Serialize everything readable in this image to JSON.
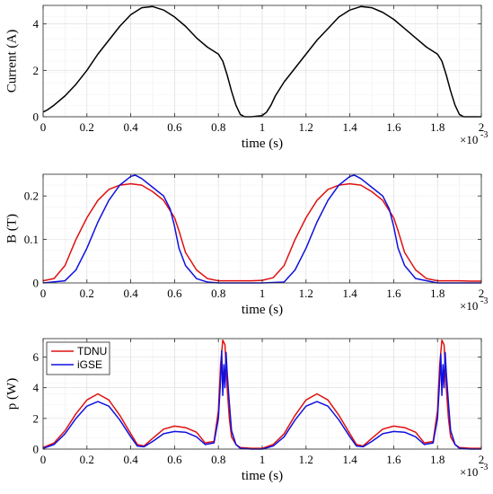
{
  "chart_data": [
    {
      "type": "line",
      "xlabel": "time (s)",
      "ylabel": "Current (A)",
      "x_multiplier_label": "×10",
      "x_multiplier_exp": "-3",
      "xlim": [
        0,
        2
      ],
      "ylim": [
        0,
        4.8
      ],
      "xticks": [
        "0",
        "0.2",
        "0.4",
        "0.6",
        "0.8",
        "1",
        "1.2",
        "1.4",
        "1.6",
        "1.8",
        "2"
      ],
      "yticks": [
        {
          "v": 0,
          "label": "0"
        },
        {
          "v": 2,
          "label": "2"
        },
        {
          "v": 4,
          "label": "4"
        }
      ],
      "grid": true,
      "legend": null,
      "series": [
        {
          "color": "#000000",
          "x": [
            0,
            0.02,
            0.05,
            0.1,
            0.15,
            0.2,
            0.25,
            0.3,
            0.35,
            0.4,
            0.45,
            0.5,
            0.55,
            0.6,
            0.65,
            0.7,
            0.75,
            0.8,
            0.82,
            0.84,
            0.86,
            0.88,
            0.9,
            0.92,
            0.95,
            1.0,
            1.02,
            1.04,
            1.06,
            1.1,
            1.15,
            1.2,
            1.25,
            1.3,
            1.35,
            1.4,
            1.45,
            1.5,
            1.55,
            1.6,
            1.65,
            1.7,
            1.75,
            1.8,
            1.82,
            1.84,
            1.86,
            1.88,
            1.9,
            1.92,
            1.95,
            2.0
          ],
          "y": [
            0.2,
            0.3,
            0.5,
            0.9,
            1.4,
            2.0,
            2.7,
            3.3,
            3.9,
            4.4,
            4.7,
            4.75,
            4.6,
            4.3,
            3.9,
            3.4,
            3.0,
            2.7,
            2.4,
            1.8,
            1.1,
            0.5,
            0.1,
            0.0,
            0.0,
            0.05,
            0.2,
            0.5,
            0.9,
            1.5,
            2.1,
            2.7,
            3.3,
            3.8,
            4.3,
            4.6,
            4.75,
            4.7,
            4.5,
            4.2,
            3.8,
            3.4,
            3.0,
            2.7,
            2.4,
            1.8,
            1.1,
            0.5,
            0.1,
            0.0,
            0.0,
            0.0
          ]
        }
      ]
    },
    {
      "type": "line",
      "xlabel": "time (s)",
      "ylabel": "B (T)",
      "x_multiplier_label": "×10",
      "x_multiplier_exp": "-3",
      "xlim": [
        0,
        2
      ],
      "ylim": [
        0,
        0.25
      ],
      "xticks": [
        "0",
        "0.2",
        "0.4",
        "0.6",
        "0.8",
        "1",
        "1.2",
        "1.4",
        "1.6",
        "1.8",
        "2"
      ],
      "yticks": [
        {
          "v": 0,
          "label": "0"
        },
        {
          "v": 0.1,
          "label": "0.1"
        },
        {
          "v": 0.2,
          "label": "0.2"
        }
      ],
      "grid": true,
      "legend": null,
      "series": [
        {
          "color": "#e01010",
          "x": [
            0,
            0.05,
            0.1,
            0.15,
            0.2,
            0.25,
            0.3,
            0.35,
            0.4,
            0.45,
            0.5,
            0.55,
            0.6,
            0.62,
            0.65,
            0.7,
            0.75,
            0.8,
            0.85,
            0.9,
            0.95,
            1.0,
            1.05,
            1.1,
            1.15,
            1.2,
            1.25,
            1.3,
            1.35,
            1.4,
            1.45,
            1.5,
            1.55,
            1.6,
            1.62,
            1.65,
            1.7,
            1.75,
            1.8,
            1.85,
            1.9,
            1.95,
            2.0
          ],
          "y": [
            0.005,
            0.01,
            0.04,
            0.1,
            0.15,
            0.19,
            0.215,
            0.225,
            0.228,
            0.225,
            0.21,
            0.19,
            0.15,
            0.12,
            0.07,
            0.03,
            0.01,
            0.005,
            0.005,
            0.005,
            0.005,
            0.006,
            0.012,
            0.04,
            0.1,
            0.15,
            0.19,
            0.215,
            0.225,
            0.228,
            0.225,
            0.21,
            0.19,
            0.15,
            0.12,
            0.07,
            0.03,
            0.01,
            0.005,
            0.005,
            0.005,
            0.004,
            0.004
          ]
        },
        {
          "color": "#1010e0",
          "x": [
            0,
            0.1,
            0.15,
            0.2,
            0.25,
            0.3,
            0.35,
            0.4,
            0.42,
            0.45,
            0.5,
            0.55,
            0.58,
            0.6,
            0.62,
            0.65,
            0.7,
            0.75,
            0.8,
            0.9,
            1.0,
            1.1,
            1.15,
            1.2,
            1.25,
            1.3,
            1.35,
            1.4,
            1.42,
            1.45,
            1.5,
            1.55,
            1.58,
            1.6,
            1.62,
            1.65,
            1.7,
            1.8,
            1.9,
            2.0
          ],
          "y": [
            0,
            0.005,
            0.03,
            0.08,
            0.14,
            0.19,
            0.225,
            0.245,
            0.248,
            0.24,
            0.22,
            0.2,
            0.17,
            0.13,
            0.08,
            0.04,
            0.01,
            0.002,
            0,
            0,
            0,
            0.002,
            0.03,
            0.08,
            0.14,
            0.19,
            0.225,
            0.245,
            0.248,
            0.24,
            0.22,
            0.2,
            0.17,
            0.13,
            0.08,
            0.04,
            0.01,
            0,
            0,
            0
          ]
        }
      ]
    },
    {
      "type": "line",
      "xlabel": "time (s)",
      "ylabel": "p (W)",
      "x_multiplier_label": "×10",
      "x_multiplier_exp": "-3",
      "xlim": [
        0,
        2
      ],
      "ylim": [
        0,
        7.2
      ],
      "xticks": [
        "0",
        "0.2",
        "0.4",
        "0.6",
        "0.8",
        "1",
        "1.2",
        "1.4",
        "1.6",
        "1.8",
        "2"
      ],
      "yticks": [
        {
          "v": 0,
          "label": "0"
        },
        {
          "v": 2,
          "label": "2"
        },
        {
          "v": 4,
          "label": "4"
        },
        {
          "v": 6,
          "label": "6"
        }
      ],
      "grid": true,
      "legend": {
        "position": "top-left"
      },
      "series": [
        {
          "name": "TDNU",
          "color": "#e01010",
          "x": [
            0,
            0.05,
            0.1,
            0.15,
            0.2,
            0.25,
            0.3,
            0.35,
            0.4,
            0.43,
            0.46,
            0.5,
            0.55,
            0.6,
            0.65,
            0.7,
            0.74,
            0.78,
            0.8,
            0.81,
            0.82,
            0.83,
            0.84,
            0.85,
            0.86,
            0.88,
            0.9,
            0.95,
            1.0,
            1.05,
            1.1,
            1.15,
            1.2,
            1.25,
            1.3,
            1.35,
            1.4,
            1.43,
            1.46,
            1.5,
            1.55,
            1.6,
            1.65,
            1.7,
            1.74,
            1.78,
            1.8,
            1.81,
            1.82,
            1.83,
            1.84,
            1.85,
            1.86,
            1.88,
            1.9,
            1.95,
            2.0
          ],
          "y": [
            0.1,
            0.4,
            1.2,
            2.3,
            3.2,
            3.6,
            3.2,
            2.2,
            1.0,
            0.3,
            0.2,
            0.7,
            1.3,
            1.5,
            1.4,
            1.1,
            0.4,
            0.5,
            2.5,
            5.5,
            7.1,
            6.8,
            4.0,
            2.0,
            0.8,
            0.3,
            0.1,
            0.05,
            0.05,
            0.3,
            1.0,
            2.2,
            3.2,
            3.6,
            3.2,
            2.2,
            1.0,
            0.3,
            0.2,
            0.7,
            1.3,
            1.5,
            1.4,
            1.1,
            0.4,
            0.5,
            2.5,
            5.5,
            7.1,
            6.8,
            4.0,
            2.0,
            0.8,
            0.3,
            0.1,
            0.05,
            0.05
          ]
        },
        {
          "name": "iGSE",
          "color": "#1010e0",
          "x": [
            0,
            0.05,
            0.1,
            0.15,
            0.2,
            0.25,
            0.3,
            0.35,
            0.4,
            0.43,
            0.46,
            0.5,
            0.55,
            0.6,
            0.65,
            0.7,
            0.74,
            0.78,
            0.8,
            0.81,
            0.815,
            0.82,
            0.825,
            0.83,
            0.835,
            0.84,
            0.85,
            0.86,
            0.88,
            0.9,
            0.95,
            1.0,
            1.05,
            1.1,
            1.15,
            1.2,
            1.25,
            1.3,
            1.35,
            1.4,
            1.43,
            1.46,
            1.5,
            1.55,
            1.6,
            1.65,
            1.7,
            1.74,
            1.78,
            1.8,
            1.81,
            1.815,
            1.82,
            1.825,
            1.83,
            1.835,
            1.84,
            1.85,
            1.86,
            1.88,
            1.9,
            1.95,
            2.0
          ],
          "y": [
            0.05,
            0.3,
            1.0,
            2.0,
            2.8,
            3.1,
            2.8,
            1.9,
            0.8,
            0.2,
            0.15,
            0.5,
            1.0,
            1.15,
            1.1,
            0.8,
            0.3,
            0.4,
            2.0,
            4.5,
            6.4,
            3.5,
            5.5,
            4.0,
            6.3,
            5.0,
            3.0,
            1.2,
            0.3,
            0.05,
            0.0,
            0.0,
            0.2,
            0.8,
            1.9,
            2.8,
            3.1,
            2.8,
            1.9,
            0.8,
            0.2,
            0.15,
            0.5,
            1.0,
            1.15,
            1.1,
            0.8,
            0.3,
            0.4,
            2.0,
            4.5,
            6.2,
            3.5,
            5.5,
            4.0,
            6.3,
            5.0,
            3.0,
            1.2,
            0.3,
            0.05,
            0.0,
            0.0
          ]
        }
      ]
    }
  ]
}
